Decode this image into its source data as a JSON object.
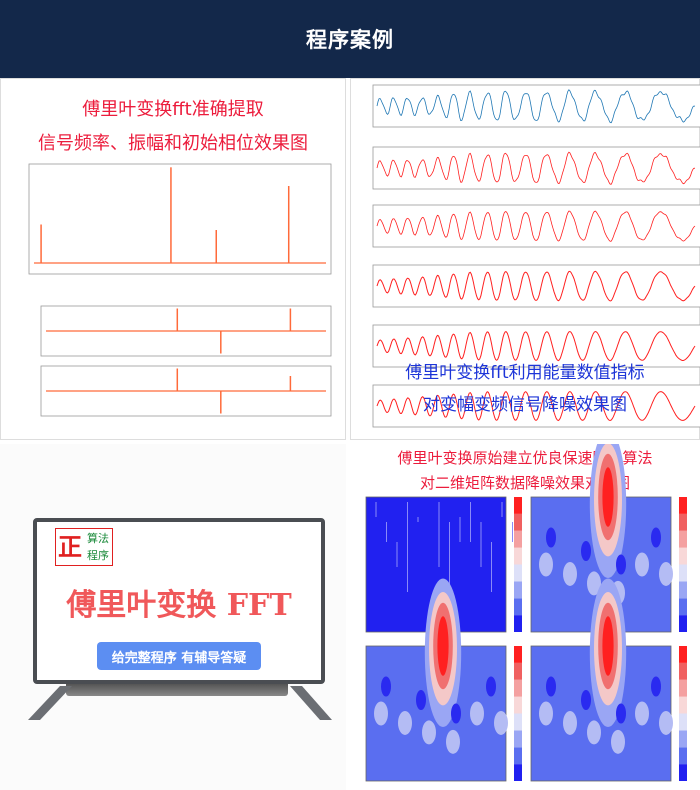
{
  "header": {
    "title": "程序案例"
  },
  "panel_spectrum": {
    "title_line1": "傅里叶变换fft准确提取",
    "title_line2": "信号频率、振幅和初始相位效果图"
  },
  "panel_denoise_signal": {
    "title_line1": "傅里叶变换fft利用能量数值指标",
    "title_line2": "对变幅变频信号降噪效果图",
    "signal_color": "#1f77b4",
    "filtered_color": "#ff2020"
  },
  "panel_tv": {
    "logo_main": "正",
    "logo_line1": "算法",
    "logo_line2": "程序",
    "headline": "傅里叶变换 FFT",
    "pill_text": "给完整程序  有辅导答疑"
  },
  "panel_matrix": {
    "title_line1": "傅里叶变换原始建立优良保速降噪算法",
    "title_line2": "对二维矩阵数据降噪效果对比图"
  },
  "colors": {
    "header_bg": "#13284a",
    "red_text": "#ec1c3c",
    "blue_text": "#1d35d8",
    "spectrum_line": "#ff6a3a"
  }
}
